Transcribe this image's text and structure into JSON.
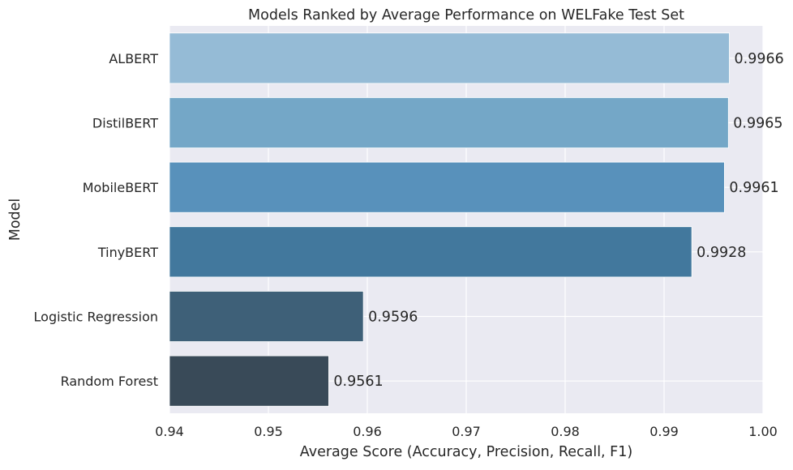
{
  "chart_data": {
    "type": "bar",
    "orientation": "horizontal",
    "title": "Models Ranked by Average Performance on WELFake Test Set",
    "xlabel": "Average Score (Accuracy, Precision, Recall, F1)",
    "ylabel": "Model",
    "categories": [
      "ALBERT",
      "DistilBERT",
      "MobileBERT",
      "TinyBERT",
      "Logistic Regression",
      "Random Forest"
    ],
    "values": [
      0.9966,
      0.9965,
      0.9961,
      0.9928,
      0.9596,
      0.9561
    ],
    "data_labels": [
      "0.9966",
      "0.9965",
      "0.9961",
      "0.9928",
      "0.9596",
      "0.9561"
    ],
    "xlim": [
      0.94,
      1.0
    ],
    "xticks": [
      "0.94",
      "0.95",
      "0.96",
      "0.97",
      "0.98",
      "0.99",
      "1.00"
    ],
    "grid": true,
    "background": "#eaeaf2",
    "bar_colors": [
      "#95bbd6",
      "#74a7c7",
      "#5891bb",
      "#42789d",
      "#3e6078",
      "#394a58"
    ]
  }
}
